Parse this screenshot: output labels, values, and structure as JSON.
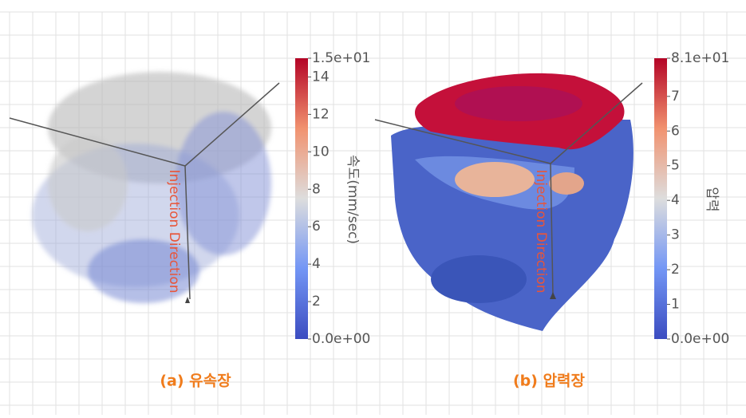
{
  "panels": [
    {
      "caption": "(a) 유속장",
      "annotation": "Injection Direction",
      "colorbar": {
        "title": "속도(mm/sec)",
        "min": {
          "value": 0,
          "label": "0.0e+00"
        },
        "max": {
          "value": 15,
          "label": "1.5e+01"
        },
        "ticks": [
          14,
          12,
          10,
          8,
          6,
          4,
          2
        ]
      }
    },
    {
      "caption": "(b) 압력장",
      "annotation": "Injection Direction",
      "colorbar": {
        "title": "압력",
        "min": {
          "value": 0,
          "label": "0.0e+00"
        },
        "max": {
          "value": 81,
          "label": "8.1e+01"
        },
        "ticks": [
          {
            "value": 70,
            "label": "7"
          },
          {
            "value": 60,
            "label": "6"
          },
          {
            "value": 50,
            "label": "5"
          },
          {
            "value": 40,
            "label": "4"
          },
          {
            "value": 30,
            "label": "3"
          },
          {
            "value": 20,
            "label": "2"
          },
          {
            "value": 10,
            "label": "1"
          }
        ]
      }
    }
  ]
}
